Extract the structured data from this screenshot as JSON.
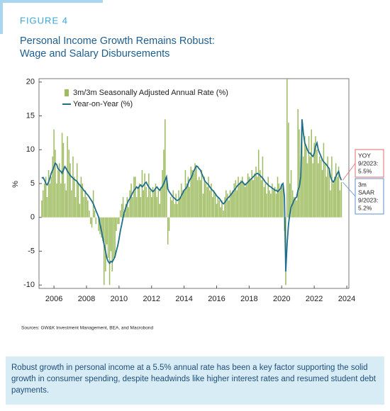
{
  "header": {
    "figure": "FIGURE 4"
  },
  "chart_data": {
    "type": "bar",
    "title": [
      "Personal Income Growth Remains Robust:",
      "Wage and Salary Disbursements"
    ],
    "y_label": "%",
    "x": [
      2005.25,
      2005.33,
      2005.42,
      2005.5,
      2005.58,
      2005.67,
      2005.75,
      2005.83,
      2005.92,
      2006,
      2006.08,
      2006.17,
      2006.25,
      2006.33,
      2006.42,
      2006.5,
      2006.58,
      2006.67,
      2006.75,
      2006.83,
      2006.92,
      2007,
      2007.08,
      2007.17,
      2007.25,
      2007.33,
      2007.42,
      2007.5,
      2007.58,
      2007.67,
      2007.75,
      2007.83,
      2007.92,
      2008,
      2008.08,
      2008.17,
      2008.25,
      2008.33,
      2008.42,
      2008.5,
      2008.58,
      2008.67,
      2008.75,
      2008.83,
      2008.92,
      2009,
      2009.08,
      2009.17,
      2009.25,
      2009.33,
      2009.42,
      2009.5,
      2009.58,
      2009.67,
      2009.75,
      2009.83,
      2009.92,
      2010,
      2010.08,
      2010.17,
      2010.25,
      2010.33,
      2010.42,
      2010.5,
      2010.58,
      2010.67,
      2010.75,
      2010.83,
      2010.92,
      2011,
      2011.08,
      2011.17,
      2011.25,
      2011.33,
      2011.42,
      2011.5,
      2011.58,
      2011.67,
      2011.75,
      2011.83,
      2011.92,
      2012,
      2012.08,
      2012.17,
      2012.25,
      2012.33,
      2012.42,
      2012.5,
      2012.58,
      2012.67,
      2012.75,
      2012.83,
      2012.92,
      2013,
      2013.08,
      2013.17,
      2013.25,
      2013.33,
      2013.42,
      2013.5,
      2013.58,
      2013.67,
      2013.75,
      2013.83,
      2013.92,
      2014,
      2014.08,
      2014.17,
      2014.25,
      2014.33,
      2014.42,
      2014.5,
      2014.58,
      2014.67,
      2014.75,
      2014.83,
      2014.92,
      2015,
      2015.08,
      2015.17,
      2015.25,
      2015.33,
      2015.42,
      2015.5,
      2015.58,
      2015.67,
      2015.75,
      2015.83,
      2015.92,
      2016,
      2016.08,
      2016.17,
      2016.25,
      2016.33,
      2016.42,
      2016.5,
      2016.58,
      2016.67,
      2016.75,
      2016.83,
      2016.92,
      2017,
      2017.08,
      2017.17,
      2017.25,
      2017.33,
      2017.42,
      2017.5,
      2017.58,
      2017.67,
      2017.75,
      2017.83,
      2017.92,
      2018,
      2018.08,
      2018.17,
      2018.25,
      2018.33,
      2018.42,
      2018.5,
      2018.58,
      2018.67,
      2018.75,
      2018.83,
      2018.92,
      2019,
      2019.08,
      2019.17,
      2019.25,
      2019.33,
      2019.42,
      2019.5,
      2019.58,
      2019.67,
      2019.75,
      2019.83,
      2019.92,
      2020,
      2020.08,
      2020.17,
      2020.25,
      2020.33,
      2020.42,
      2020.5,
      2020.58,
      2020.67,
      2020.75,
      2020.83,
      2020.92,
      2021,
      2021.08,
      2021.17,
      2021.25,
      2021.33,
      2021.42,
      2021.5,
      2021.58,
      2021.67,
      2021.75,
      2021.83,
      2021.92,
      2022,
      2022.08,
      2022.17,
      2022.25,
      2022.33,
      2022.42,
      2022.5,
      2022.58,
      2022.67,
      2022.75,
      2022.83,
      2022.92,
      2023,
      2023.08,
      2023.17,
      2023.25,
      2023.33,
      2023.42,
      2023.5,
      2023.58,
      2023.67
    ],
    "series": [
      {
        "name": "3m/3m Seasonally Adjusted Annual Rate (%)",
        "type": "bar",
        "color": "#9dbb5f",
        "values": [
          2.5,
          4,
          5,
          6,
          3,
          7,
          5,
          6,
          9,
          13,
          10,
          5,
          7,
          8,
          5,
          12.5,
          11,
          5,
          4,
          12,
          10,
          8,
          4,
          9,
          6,
          3,
          8,
          5,
          2,
          6,
          5,
          3,
          4,
          3,
          2.5,
          1,
          -1,
          -1.5,
          4,
          1,
          -1,
          0,
          -2,
          -2.5,
          -3,
          -3.5,
          -10,
          -8,
          -4,
          -6,
          -10,
          -5,
          -8,
          -6,
          -6,
          -2,
          -1,
          -1,
          1,
          2,
          3,
          0.5,
          2,
          3,
          1.5,
          4,
          5,
          3,
          6,
          6,
          3,
          4.5,
          5,
          3,
          7,
          4,
          6.5,
          4.5,
          3,
          6.5,
          4,
          3,
          4.5,
          4,
          5,
          3,
          4,
          2,
          4.5,
          7,
          10,
          14.5,
          6,
          -4,
          -2,
          3,
          2.5,
          4,
          2,
          3.5,
          2,
          4,
          3,
          5,
          4,
          4,
          7,
          5,
          6,
          4.5,
          7.5,
          7,
          6.5,
          8,
          7.5,
          5.5,
          6,
          5.5,
          7,
          3.5,
          6,
          5,
          4.5,
          6,
          4,
          5,
          3,
          4,
          3.5,
          2,
          3,
          2.5,
          1.5,
          2.5,
          1,
          3,
          4,
          3.5,
          2.5,
          4,
          3.5,
          4,
          5,
          5.5,
          4,
          6,
          5,
          5.5,
          6,
          5,
          4.5,
          5,
          6.5,
          6,
          5.5,
          7,
          5.5,
          6.5,
          7.5,
          6,
          10,
          7,
          5.5,
          9,
          4.5,
          5,
          3.5,
          6,
          4,
          3.5,
          5,
          4,
          4.5,
          3.5,
          6,
          5,
          4,
          5,
          5,
          -2,
          -10,
          22,
          14,
          5,
          7,
          4,
          3,
          3,
          2.5,
          16,
          13,
          6,
          14,
          9,
          12,
          10.5,
          8,
          12,
          9,
          13,
          8,
          11,
          12,
          10,
          8,
          9,
          8.5,
          7,
          11,
          8,
          6,
          9,
          7,
          4,
          9,
          5,
          6,
          8,
          6,
          7.5,
          4,
          5.2
        ]
      },
      {
        "name": "Year-on-Year (%)",
        "type": "line",
        "color": "#1f6e8c",
        "values": [
          5.8,
          5.9,
          5.5,
          5.0,
          4.8,
          5.2,
          5.8,
          6.5,
          7.0,
          7.5,
          8.0,
          7.8,
          7.2,
          7.0,
          6.8,
          6.5,
          7.0,
          7.5,
          7.2,
          6.8,
          6.5,
          6.2,
          6.0,
          5.8,
          5.6,
          5.5,
          5.3,
          5.0,
          4.8,
          4.5,
          4.3,
          4.0,
          3.8,
          3.5,
          3.3,
          3.0,
          2.7,
          2.4,
          2.0,
          1.5,
          1.0,
          0.5,
          0,
          -1.0,
          -2.0,
          -3.0,
          -4.0,
          -5.0,
          -6.0,
          -6.5,
          -6.8,
          -6.5,
          -6.6,
          -6.2,
          -5.8,
          -5.0,
          -4.2,
          -3.2,
          -2.0,
          -1.0,
          0,
          0.8,
          1.5,
          2.0,
          2.5,
          2.8,
          3.2,
          3.6,
          4.0,
          4.2,
          4.5,
          4.3,
          4.6,
          4.8,
          4.5,
          4.7,
          5.0,
          5.2,
          4.8,
          4.5,
          4.2,
          4.0,
          3.8,
          4.0,
          4.3,
          4.5,
          4.2,
          4.0,
          4.3,
          4.6,
          5.0,
          5.5,
          6.0,
          4.2,
          3.8,
          3.5,
          3.2,
          3.0,
          2.8,
          2.6,
          2.5,
          2.6,
          2.8,
          3.2,
          3.6,
          4.0,
          4.2,
          4.5,
          5.0,
          5.5,
          5.8,
          6.2,
          6.8,
          7.2,
          7.6,
          7.5,
          7.2,
          7.0,
          6.5,
          6.0,
          5.5,
          5.2,
          5.0,
          4.8,
          4.5,
          4.2,
          4.0,
          3.8,
          3.5,
          3.2,
          3.0,
          2.8,
          2.5,
          2.2,
          2.0,
          2.2,
          2.5,
          2.8,
          3.0,
          3.2,
          3.5,
          3.8,
          4.0,
          4.3,
          4.6,
          4.8,
          5.0,
          5.2,
          5.3,
          5.0,
          4.8,
          5.0,
          5.2,
          5.4,
          5.6,
          5.8,
          6.0,
          6.2,
          6.4,
          6.5,
          6.4,
          6.2,
          6.0,
          5.8,
          5.5,
          5.2,
          5.0,
          4.8,
          4.6,
          4.5,
          4.3,
          4.2,
          4.0,
          4.0,
          3.8,
          4.0,
          4.2,
          4.8,
          5.0,
          3.0,
          -8.0,
          -4.0,
          -1.0,
          0.5,
          1.5,
          2.0,
          2.5,
          2.8,
          3.0,
          4.0,
          4.5,
          6.0,
          14.5,
          12.5,
          11.0,
          10.5,
          10.0,
          9.5,
          9.5,
          9.2,
          9.0,
          9.5,
          10.5,
          11.0,
          10.0,
          9.5,
          9.0,
          8.5,
          8.2,
          8.0,
          7.8,
          7.5,
          7.2,
          6.0,
          5.5,
          5.2,
          5.5,
          6.0,
          6.5,
          6.8,
          6.0,
          5.5
        ]
      }
    ],
    "xlim": [
      2005.08,
      2024.13
    ],
    "xticks": [
      2006,
      2008,
      2010,
      2012,
      2014,
      2016,
      2018,
      2020,
      2022,
      2024
    ],
    "ylim": [
      -10.5,
      20.5
    ],
    "yticks": [
      -10,
      -5,
      0,
      5,
      10,
      15,
      20
    ],
    "legend": "top-left",
    "annotations": [
      {
        "text": [
          "YOY",
          "9/2023:",
          "5.5%"
        ],
        "color": "#e06c6c"
      },
      {
        "text": [
          "3m",
          "SAAR",
          "9/2023:",
          "5.2%"
        ],
        "color": "#5b8fc9"
      }
    ]
  },
  "source": "Sources: GW&K Investment Management, BEA, and Macrobond",
  "caption": "Robust growth in personal income at a 5.5% annual rate has been a key factor supporting the solid growth in consumer spending, despite headwinds like higher interest rates and resumed student debt payments."
}
